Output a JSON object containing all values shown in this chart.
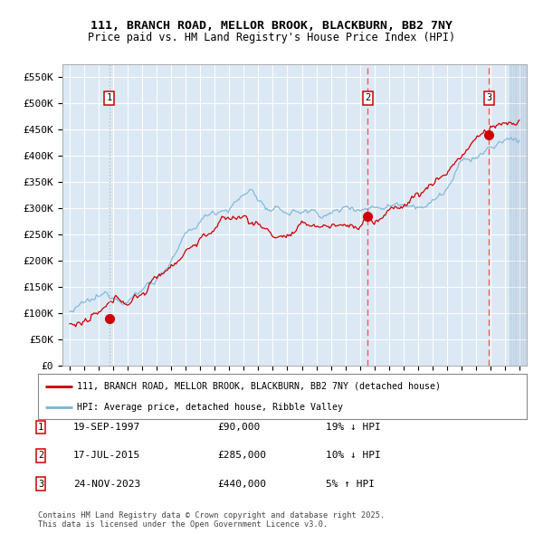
{
  "title_line1": "111, BRANCH ROAD, MELLOR BROOK, BLACKBURN, BB2 7NY",
  "title_line2": "Price paid vs. HM Land Registry's House Price Index (HPI)",
  "ylabel_ticks": [
    "£0",
    "£50K",
    "£100K",
    "£150K",
    "£200K",
    "£250K",
    "£300K",
    "£350K",
    "£400K",
    "£450K",
    "£500K",
    "£550K"
  ],
  "ytick_vals": [
    0,
    50000,
    100000,
    150000,
    200000,
    250000,
    300000,
    350000,
    400000,
    450000,
    500000,
    550000
  ],
  "xlim": [
    1994.5,
    2026.5
  ],
  "ylim": [
    0,
    575000
  ],
  "bg_color": "#dce9f5",
  "grid_color": "#ffffff",
  "hpi_color": "#7ab4d8",
  "sale_color": "#cc0000",
  "sale_points": [
    {
      "date": 1997.72,
      "price": 90000,
      "label": "1",
      "line_color": "#bbbbbb",
      "line_style": "dotted"
    },
    {
      "date": 2015.54,
      "price": 285000,
      "label": "2",
      "line_color": "#ff5555",
      "line_style": "dashed"
    },
    {
      "date": 2023.9,
      "price": 440000,
      "label": "3",
      "line_color": "#ff5555",
      "line_style": "dashed"
    }
  ],
  "legend_line1": "111, BRANCH ROAD, MELLOR BROOK, BLACKBURN, BB2 7NY (detached house)",
  "legend_line2": "HPI: Average price, detached house, Ribble Valley",
  "table_rows": [
    {
      "num": "1",
      "date": "19-SEP-1997",
      "price": "£90,000",
      "hpi": "19% ↓ HPI"
    },
    {
      "num": "2",
      "date": "17-JUL-2015",
      "price": "£285,000",
      "hpi": "10% ↓ HPI"
    },
    {
      "num": "3",
      "date": "24-NOV-2023",
      "price": "£440,000",
      "hpi": "5% ↑ HPI"
    }
  ],
  "footnote": "Contains HM Land Registry data © Crown copyright and database right 2025.\nThis data is licensed under the Open Government Licence v3.0."
}
